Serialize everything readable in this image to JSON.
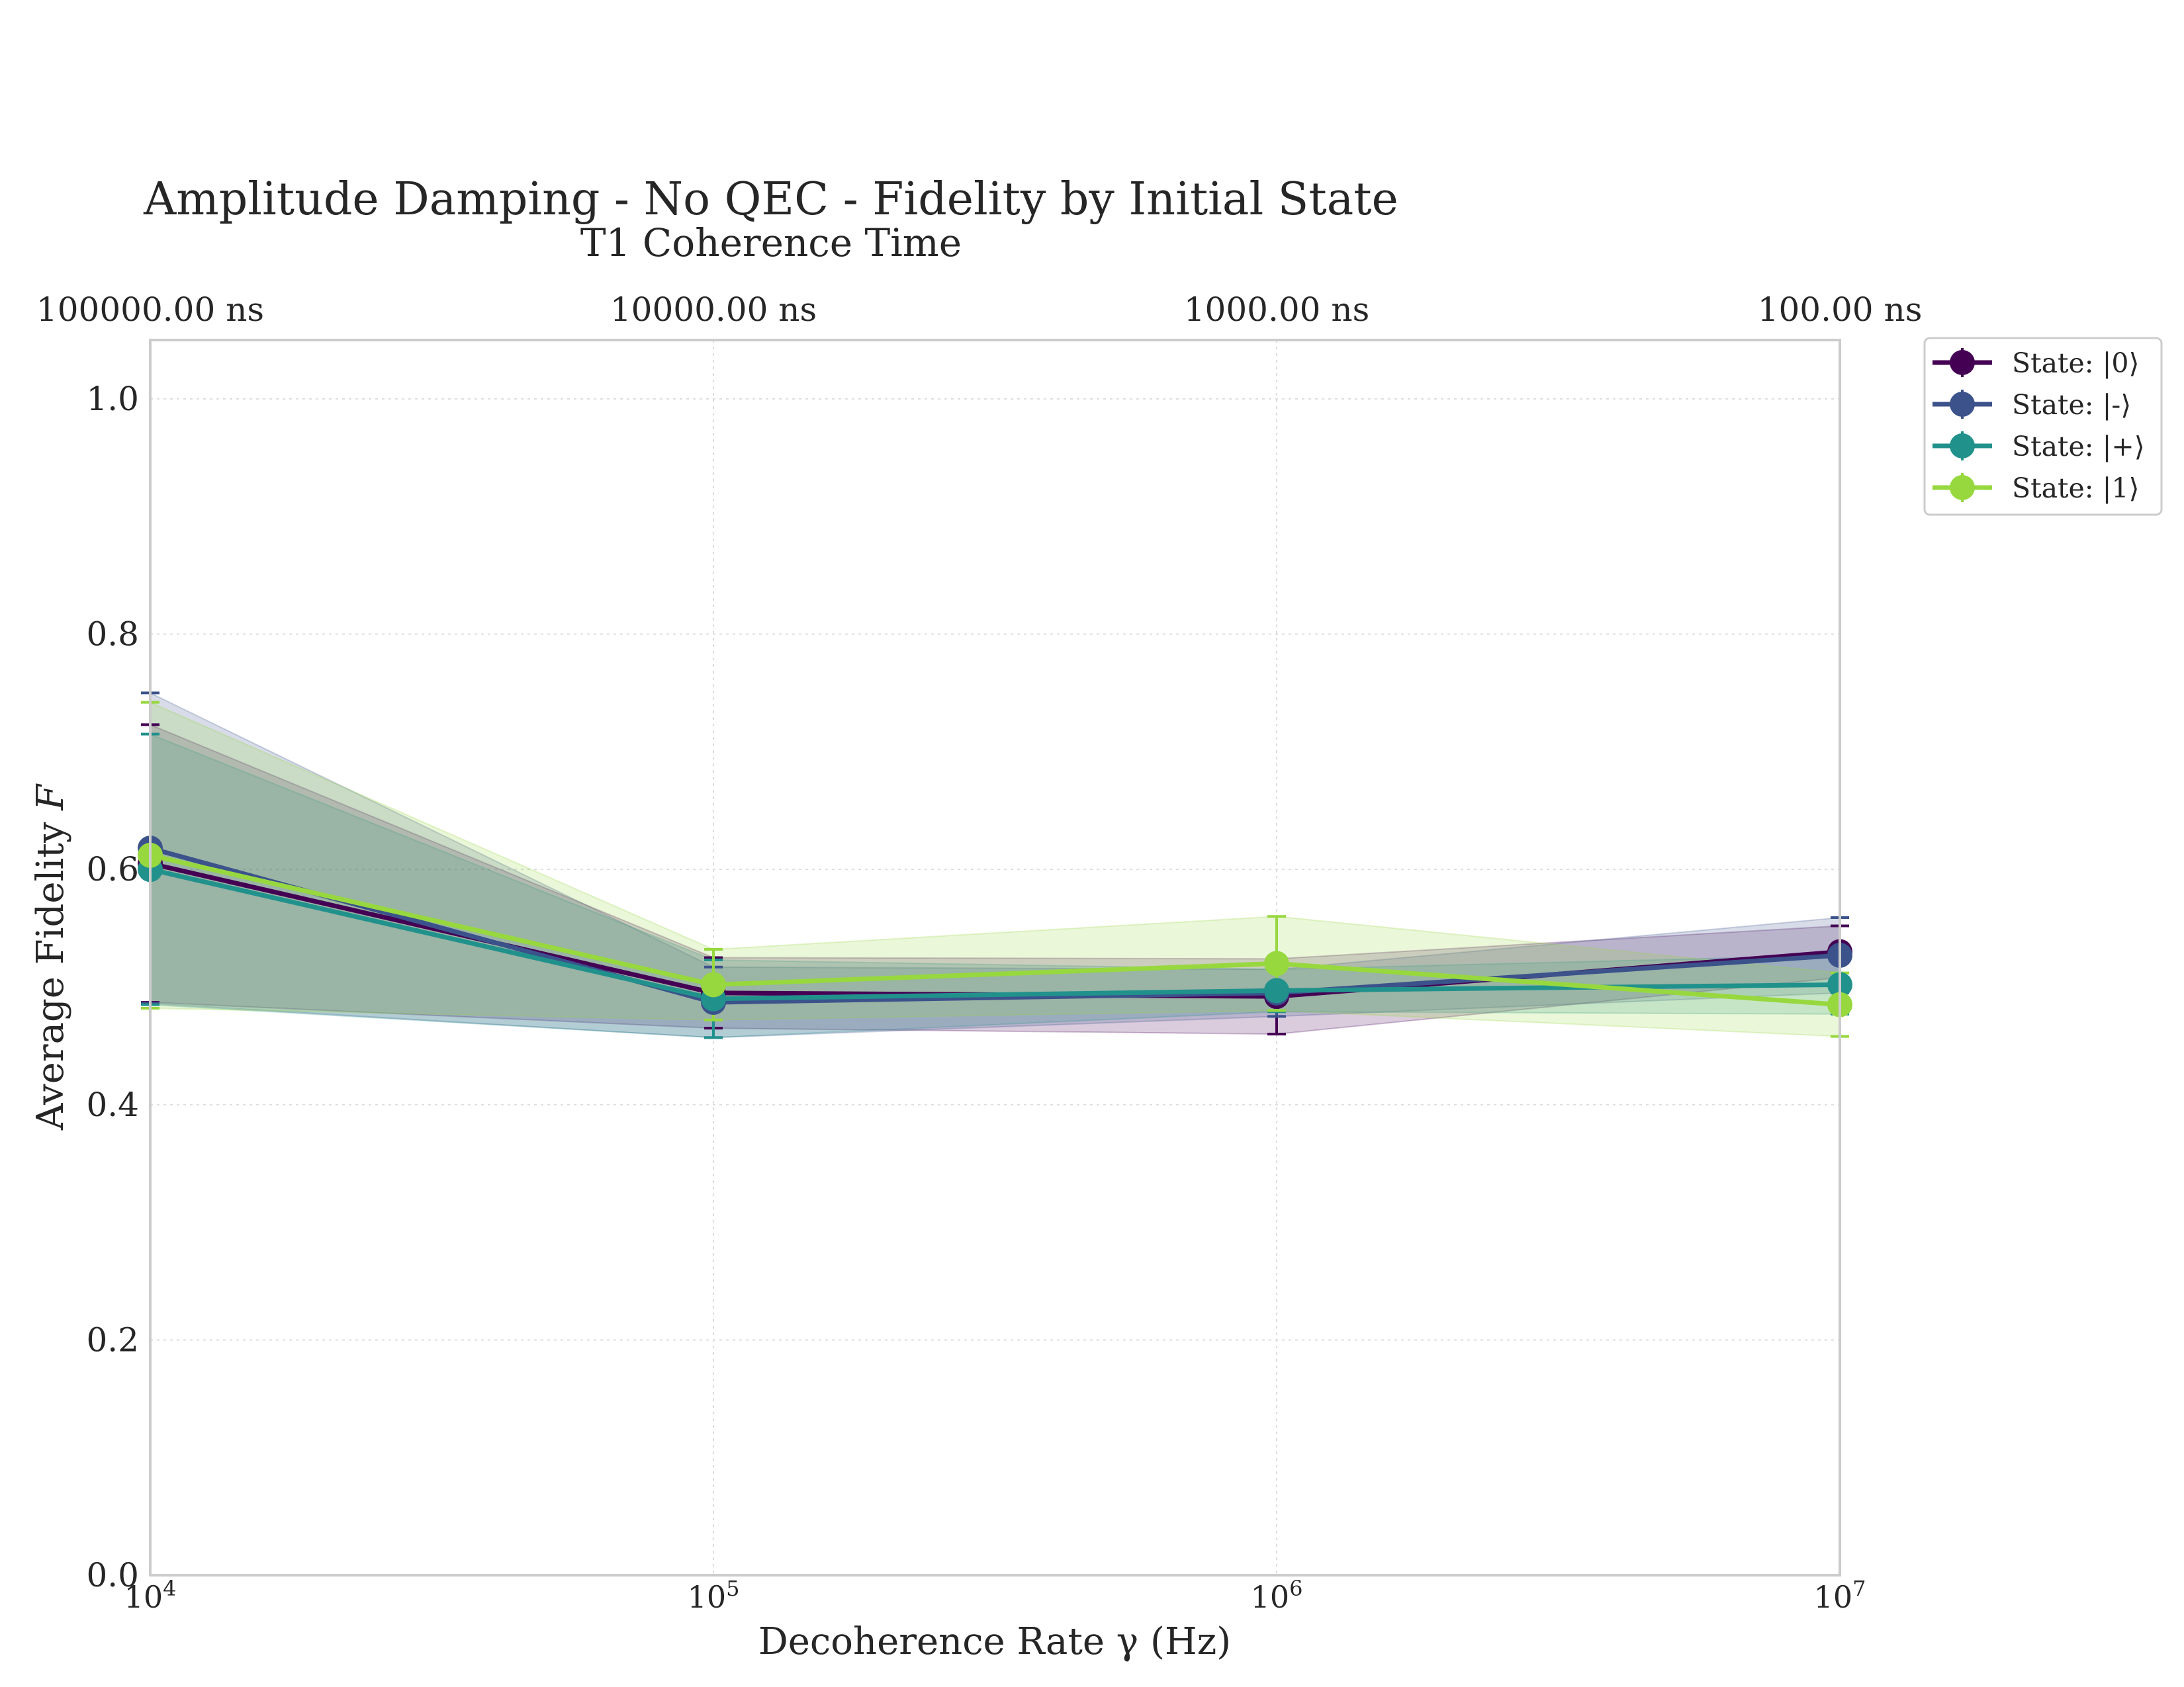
{
  "chart_data": {
    "type": "line",
    "title": "Amplitude Damping - No QEC - Fidelity by Initial State",
    "top_axis_label": "T1 Coherence Time",
    "xlabel": "Decoherence Rate γ (Hz)",
    "ylabel_text": "Average Fidelity ",
    "ylabel_symbol": "F",
    "x_scale": "log",
    "x": [
      10000,
      100000,
      1000000,
      10000000
    ],
    "x_tick_labels": [
      {
        "base": "10",
        "exp": "4"
      },
      {
        "base": "10",
        "exp": "5"
      },
      {
        "base": "10",
        "exp": "6"
      },
      {
        "base": "10",
        "exp": "7"
      }
    ],
    "top_tick_labels": [
      "100000.00 ns",
      "10000.00 ns",
      "1000.00 ns",
      "100.00 ns"
    ],
    "ylim": [
      0.0,
      1.05
    ],
    "y_ticks": [
      "0.0",
      "0.2",
      "0.4",
      "0.6",
      "0.8",
      "1.0"
    ],
    "grid": true,
    "legend_position": "outside upper right",
    "series": [
      {
        "name": "State: |0⟩",
        "color": "#440154",
        "y": [
          0.605,
          0.495,
          0.492,
          0.53
        ],
        "err": [
          0.118,
          0.03,
          0.032,
          0.022
        ]
      },
      {
        "name": "State: |-⟩",
        "color": "#3b528b",
        "y": [
          0.618,
          0.487,
          0.495,
          0.527
        ],
        "err": [
          0.132,
          0.03,
          0.02,
          0.032
        ]
      },
      {
        "name": "State: |+⟩",
        "color": "#21918c",
        "y": [
          0.6,
          0.49,
          0.497,
          0.502
        ],
        "err": [
          0.115,
          0.033,
          0.018,
          0.025
        ]
      },
      {
        "name": "State: |1⟩",
        "color": "#97d83f",
        "y": [
          0.612,
          0.502,
          0.52,
          0.485
        ],
        "err": [
          0.13,
          0.03,
          0.04,
          0.027
        ]
      }
    ]
  }
}
